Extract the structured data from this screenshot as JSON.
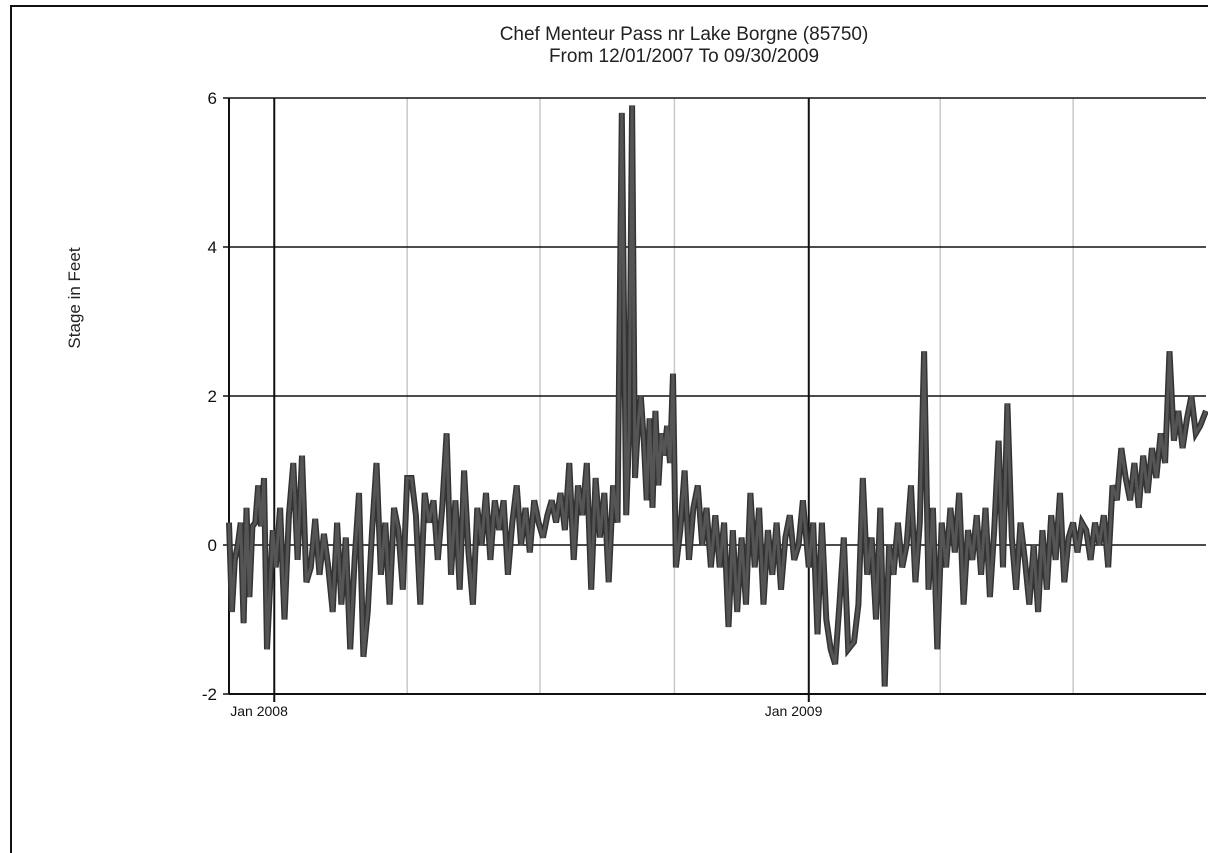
{
  "chart_data": {
    "type": "line",
    "title": "Chef Menteur Pass nr Lake Borgne (85750)",
    "subtitle": "From 12/01/2007 To 09/30/2009",
    "xlabel": "",
    "ylabel": "Stage in Feet",
    "xlim": [
      "2007-12-01",
      "2009-09-30"
    ],
    "ylim": [
      -2,
      6
    ],
    "yticks": [
      -2,
      0,
      2,
      4,
      6
    ],
    "xtick_labels": [
      {
        "date": "2008-01-01",
        "label": "Jan 2008"
      },
      {
        "date": "2009-01-01",
        "label": "Jan 2009"
      }
    ],
    "grid": true,
    "legend": "none",
    "line_color": "#555555",
    "series": [
      {
        "x": [
          "2007-12-01",
          "2007-12-03",
          "2007-12-05",
          "2007-12-07",
          "2007-12-09",
          "2007-12-11",
          "2007-12-13",
          "2007-12-15",
          "2007-12-17",
          "2007-12-19",
          "2007-12-21",
          "2007-12-23",
          "2007-12-25",
          "2007-12-27",
          "2007-12-29",
          "2007-12-31",
          "2008-01-02",
          "2008-01-05",
          "2008-01-08",
          "2008-01-11",
          "2008-01-14",
          "2008-01-17",
          "2008-01-20",
          "2008-01-23",
          "2008-01-26",
          "2008-01-29",
          "2008-02-01",
          "2008-02-04",
          "2008-02-07",
          "2008-02-10",
          "2008-02-13",
          "2008-02-16",
          "2008-02-19",
          "2008-02-22",
          "2008-02-25",
          "2008-02-28",
          "2008-03-02",
          "2008-03-05",
          "2008-03-08",
          "2008-03-11",
          "2008-03-14",
          "2008-03-17",
          "2008-03-20",
          "2008-03-23",
          "2008-03-26",
          "2008-03-29",
          "2008-04-01",
          "2008-04-04",
          "2008-04-07",
          "2008-04-10",
          "2008-04-13",
          "2008-04-16",
          "2008-04-19",
          "2008-04-22",
          "2008-04-25",
          "2008-04-28",
          "2008-05-01",
          "2008-05-04",
          "2008-05-07",
          "2008-05-10",
          "2008-05-13",
          "2008-05-16",
          "2008-05-19",
          "2008-05-22",
          "2008-05-25",
          "2008-05-28",
          "2008-05-31",
          "2008-06-03",
          "2008-06-06",
          "2008-06-09",
          "2008-06-12",
          "2008-06-15",
          "2008-06-18",
          "2008-06-21",
          "2008-06-24",
          "2008-06-27",
          "2008-06-30",
          "2008-07-03",
          "2008-07-06",
          "2008-07-09",
          "2008-07-12",
          "2008-07-15",
          "2008-07-18",
          "2008-07-21",
          "2008-07-24",
          "2008-07-27",
          "2008-07-30",
          "2008-08-02",
          "2008-08-05",
          "2008-08-08",
          "2008-08-11",
          "2008-08-14",
          "2008-08-17",
          "2008-08-20",
          "2008-08-23",
          "2008-08-26",
          "2008-08-29",
          "2008-08-31",
          "2008-09-02",
          "2008-09-04",
          "2008-09-06",
          "2008-09-08",
          "2008-09-10",
          "2008-09-12",
          "2008-09-14",
          "2008-09-16",
          "2008-09-18",
          "2008-09-20",
          "2008-09-22",
          "2008-09-24",
          "2008-09-26",
          "2008-09-28",
          "2008-09-30",
          "2008-10-02",
          "2008-10-05",
          "2008-10-08",
          "2008-10-11",
          "2008-10-14",
          "2008-10-17",
          "2008-10-20",
          "2008-10-23",
          "2008-10-26",
          "2008-10-29",
          "2008-11-01",
          "2008-11-04",
          "2008-11-07",
          "2008-11-10",
          "2008-11-13",
          "2008-11-16",
          "2008-11-19",
          "2008-11-22",
          "2008-11-25",
          "2008-11-28",
          "2008-12-01",
          "2008-12-04",
          "2008-12-07",
          "2008-12-10",
          "2008-12-13",
          "2008-12-16",
          "2008-12-19",
          "2008-12-22",
          "2008-12-25",
          "2008-12-28",
          "2009-01-01",
          "2009-01-04",
          "2009-01-07",
          "2009-01-10",
          "2009-01-13",
          "2009-01-16",
          "2009-01-19",
          "2009-01-22",
          "2009-01-25",
          "2009-01-28",
          "2009-02-01",
          "2009-02-04",
          "2009-02-07",
          "2009-02-10",
          "2009-02-13",
          "2009-02-16",
          "2009-02-19",
          "2009-02-22",
          "2009-02-25",
          "2009-02-28",
          "2009-03-03",
          "2009-03-06",
          "2009-03-09",
          "2009-03-12",
          "2009-03-15",
          "2009-03-18",
          "2009-03-21",
          "2009-03-24",
          "2009-03-27",
          "2009-03-30",
          "2009-04-02",
          "2009-04-05",
          "2009-04-08",
          "2009-04-11",
          "2009-04-14",
          "2009-04-17",
          "2009-04-20",
          "2009-04-23",
          "2009-04-26",
          "2009-04-29",
          "2009-05-02",
          "2009-05-05",
          "2009-05-08",
          "2009-05-11",
          "2009-05-14",
          "2009-05-17",
          "2009-05-20",
          "2009-05-23",
          "2009-05-26",
          "2009-05-29",
          "2009-06-01",
          "2009-06-04",
          "2009-06-07",
          "2009-06-10",
          "2009-06-13",
          "2009-06-16",
          "2009-06-19",
          "2009-06-22",
          "2009-06-25",
          "2009-06-28",
          "2009-07-01",
          "2009-07-04",
          "2009-07-07",
          "2009-07-10",
          "2009-07-13",
          "2009-07-16",
          "2009-07-19",
          "2009-07-22",
          "2009-07-25",
          "2009-07-28",
          "2009-07-31",
          "2009-08-03",
          "2009-08-06",
          "2009-08-09",
          "2009-08-12",
          "2009-08-15",
          "2009-08-18",
          "2009-08-21",
          "2009-08-24",
          "2009-08-27",
          "2009-08-30",
          "2009-09-02",
          "2009-09-05",
          "2009-09-08",
          "2009-09-11",
          "2009-09-14",
          "2009-09-17",
          "2009-09-20",
          "2009-09-23",
          "2009-09-26",
          "2009-09-30"
        ],
        "y": [
          0.3,
          -0.9,
          -0.2,
          0.0,
          0.3,
          -1.05,
          0.5,
          -0.7,
          0.25,
          0.3,
          0.8,
          0.25,
          0.9,
          -1.4,
          -0.6,
          0.2,
          -0.3,
          0.5,
          -1.0,
          0.4,
          1.1,
          -0.2,
          1.2,
          -0.5,
          -0.3,
          0.35,
          -0.4,
          0.15,
          -0.3,
          -0.9,
          0.3,
          -0.8,
          0.1,
          -1.4,
          -0.2,
          0.7,
          -1.5,
          -0.9,
          0.2,
          1.1,
          -0.4,
          0.3,
          -0.8,
          0.5,
          0.2,
          -0.6,
          0.9,
          0.9,
          0.4,
          -0.8,
          0.7,
          0.3,
          0.6,
          -0.2,
          0.5,
          1.5,
          -0.4,
          0.6,
          -0.6,
          1.0,
          -0.1,
          -0.8,
          0.5,
          0.0,
          0.7,
          -0.2,
          0.6,
          0.2,
          0.6,
          -0.4,
          0.3,
          0.8,
          0.0,
          0.5,
          -0.1,
          0.6,
          0.3,
          0.1,
          0.4,
          0.6,
          0.3,
          0.7,
          0.2,
          1.1,
          -0.2,
          0.8,
          0.4,
          1.1,
          -0.6,
          0.9,
          0.1,
          0.7,
          -0.5,
          0.8,
          0.3,
          5.8,
          0.4,
          1.5,
          5.9,
          0.9,
          1.6,
          2.0,
          1.4,
          0.6,
          1.7,
          0.5,
          1.8,
          0.8,
          1.5,
          1.2,
          1.6,
          1.1,
          2.3,
          -0.3,
          0.2,
          1.0,
          -0.2,
          0.5,
          0.8,
          0.0,
          0.5,
          -0.3,
          0.4,
          -0.3,
          0.3,
          -1.1,
          0.2,
          -0.9,
          0.1,
          -0.8,
          0.7,
          -0.3,
          0.5,
          -0.8,
          0.2,
          -0.4,
          0.3,
          -0.6,
          0.1,
          0.4,
          -0.2,
          0.0,
          0.6,
          -0.3,
          0.3,
          -1.2,
          0.3,
          -1.0,
          -1.4,
          -1.6,
          -0.8,
          0.1,
          -1.4,
          -1.3,
          -0.8,
          0.9,
          -0.4,
          0.1,
          -1.0,
          0.5,
          -1.9,
          0.0,
          -0.4,
          0.3,
          -0.3,
          0.0,
          0.8,
          -0.5,
          0.3,
          2.6,
          -0.6,
          0.5,
          -1.4,
          0.3,
          -0.3,
          0.5,
          -0.1,
          0.7,
          -0.8,
          0.2,
          -0.2,
          0.4,
          -0.4,
          0.5,
          -0.7,
          0.2,
          1.4,
          -0.3,
          1.9,
          0.1,
          -0.6,
          0.3,
          -0.2,
          -0.8,
          0.0,
          -0.9,
          0.2,
          -0.6,
          0.4,
          -0.2,
          0.7,
          -0.5,
          0.1,
          0.3,
          -0.1,
          0.3,
          0.2,
          -0.2,
          0.3,
          0.0,
          0.4,
          -0.3,
          0.8,
          0.6,
          1.3,
          0.9,
          0.6,
          1.1,
          0.5,
          1.2,
          0.7,
          1.3,
          0.9,
          1.5,
          1.1,
          2.6,
          1.4,
          1.8,
          1.3,
          1.7,
          2.0,
          1.5,
          1.6,
          1.8
        ]
      }
    ]
  }
}
